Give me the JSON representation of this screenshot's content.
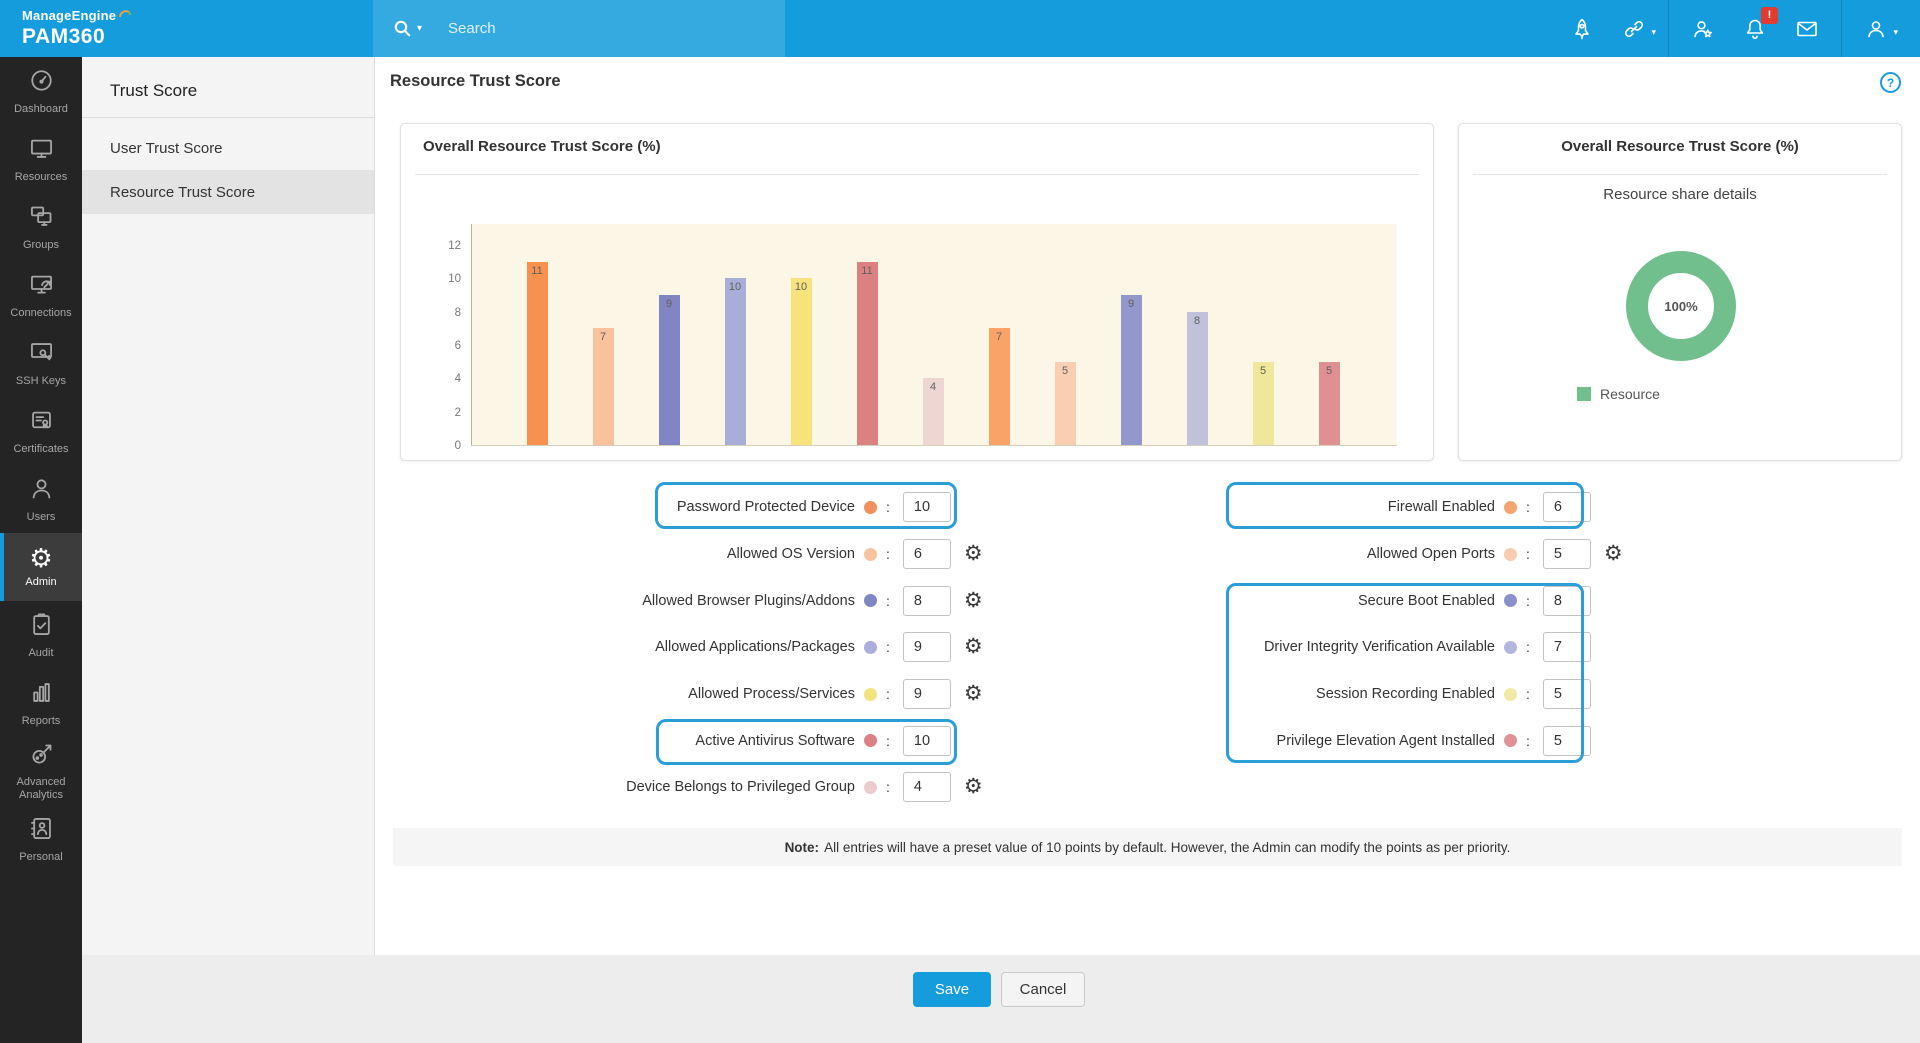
{
  "brand": {
    "name_top": "ManageEngine",
    "name_bottom": "PAM360"
  },
  "topbar": {
    "search_placeholder": "Search",
    "icons": [
      {
        "name": "rocket-icon"
      },
      {
        "name": "link-icon",
        "caret": true
      },
      {
        "name": "divider"
      },
      {
        "name": "user-star-icon"
      },
      {
        "name": "bell-icon",
        "badge": "!"
      },
      {
        "name": "mail-icon"
      },
      {
        "name": "divider"
      },
      {
        "name": "user-icon",
        "caret": true
      }
    ]
  },
  "sidebar": {
    "active": "Admin",
    "items": [
      {
        "label": "Dashboard",
        "icon": "dashboard"
      },
      {
        "label": "Resources",
        "icon": "resources"
      },
      {
        "label": "Groups",
        "icon": "groups"
      },
      {
        "label": "Connections",
        "icon": "connections"
      },
      {
        "label": "SSH Keys",
        "icon": "ssh-keys"
      },
      {
        "label": "Certificates",
        "icon": "certificates"
      },
      {
        "label": "Users",
        "icon": "users"
      },
      {
        "label": "Admin",
        "icon": "admin"
      },
      {
        "label": "Audit",
        "icon": "audit"
      },
      {
        "label": "Reports",
        "icon": "reports"
      },
      {
        "label": "Advanced Analytics",
        "icon": "advanced-analytics"
      },
      {
        "label": "Personal",
        "icon": "personal"
      }
    ]
  },
  "subsidebar": {
    "title": "Trust Score",
    "items": [
      {
        "label": "User Trust Score",
        "active": false
      },
      {
        "label": "Resource Trust Score",
        "active": true
      }
    ]
  },
  "page": {
    "title": "Resource Trust Score",
    "help": "?"
  },
  "chart_data": [
    {
      "type": "bar",
      "title": "Overall Resource Trust Score (%)",
      "categories": [
        "Password Protected Device",
        "Allowed OS Version",
        "Allowed Browser Plugins/Addons",
        "Allowed Applications/Packages",
        "Allowed Process/Services",
        "Active Antivirus Software",
        "Device Belongs to Privileged Group",
        "Firewall Enabled",
        "Allowed Open Ports",
        "Secure Boot Enabled",
        "Driver Integrity Verification Available",
        "Session Recording Enabled",
        "Privilege Elevation Agent Installed"
      ],
      "values": [
        11,
        7,
        9,
        10,
        10,
        11,
        4,
        7,
        5,
        9,
        8,
        5,
        5
      ],
      "colors": [
        "#f79150",
        "#f9c29d",
        "#7f86c3",
        "#a9aed8",
        "#f6e37c",
        "#dc8181",
        "#eed6d2",
        "#f9a368",
        "#f9ceb3",
        "#9297cc",
        "#bfc2da",
        "#efe79a",
        "#df9093"
      ],
      "yticks": [
        0,
        2,
        4,
        6,
        8,
        10,
        12
      ],
      "ylim": [
        0,
        13.3
      ],
      "xlabel": "",
      "ylabel": "",
      "grid": false,
      "plot_bg": "#fcf6e7"
    },
    {
      "type": "donut",
      "title": "Overall Resource Trust Score (%)",
      "subtitle": "Resource share details",
      "center_label": "100%",
      "values": [
        {
          "name": "Resource",
          "value": 100
        }
      ],
      "color": "#72bf8e",
      "legend": [
        {
          "label": "Resource",
          "color": "#72bf8e"
        }
      ],
      "legend_position": "bottom-left"
    }
  ],
  "form": {
    "left": [
      {
        "label": "Password Protected Device",
        "dot_color": "#f0905c",
        "value": "10",
        "gear": false,
        "boxed": "single"
      },
      {
        "label": "Allowed OS Version",
        "dot_color": "#f7c29e",
        "value": "6",
        "gear": true,
        "boxed": null
      },
      {
        "label": "Allowed Browser Plugins/Addons",
        "dot_color": "#7f86c5",
        "value": "8",
        "gear": true,
        "boxed": null
      },
      {
        "label": "Allowed Applications/Packages",
        "dot_color": "#abaedd",
        "value": "9",
        "gear": true,
        "boxed": null
      },
      {
        "label": "Allowed Process/Services",
        "dot_color": "#f2e37e",
        "value": "9",
        "gear": true,
        "boxed": null
      },
      {
        "label": "Active Antivirus Software",
        "dot_color": "#dd8085",
        "value": "10",
        "gear": false,
        "boxed": "single"
      },
      {
        "label": "Device Belongs to Privileged Group",
        "dot_color": "#edcbce",
        "value": "4",
        "gear": true,
        "boxed": null
      }
    ],
    "right": [
      {
        "label": "Firewall Enabled",
        "dot_color": "#f5a471",
        "value": "6",
        "gear": false,
        "boxed": "single"
      },
      {
        "label": "Allowed Open Ports",
        "dot_color": "#f8ccb1",
        "value": "5",
        "gear": true,
        "boxed": null
      },
      {
        "label": "Secure Boot Enabled",
        "dot_color": "#8a90cb",
        "value": "8",
        "gear": false,
        "boxed": "group"
      },
      {
        "label": "Driver Integrity Verification Available",
        "dot_color": "#b4b7dd",
        "value": "7",
        "gear": false,
        "boxed": "group"
      },
      {
        "label": "Session Recording Enabled",
        "dot_color": "#f0eaa4",
        "value": "5",
        "gear": false,
        "boxed": "group"
      },
      {
        "label": "Privilege Elevation Agent Installed",
        "dot_color": "#e09397",
        "value": "5",
        "gear": false,
        "boxed": "group"
      }
    ],
    "note_prefix": "Note:",
    "note_text": "All entries will have a preset value of 10 points by default. However, the Admin can modify the points as per priority."
  },
  "footer": {
    "save": "Save",
    "cancel": "Cancel"
  }
}
